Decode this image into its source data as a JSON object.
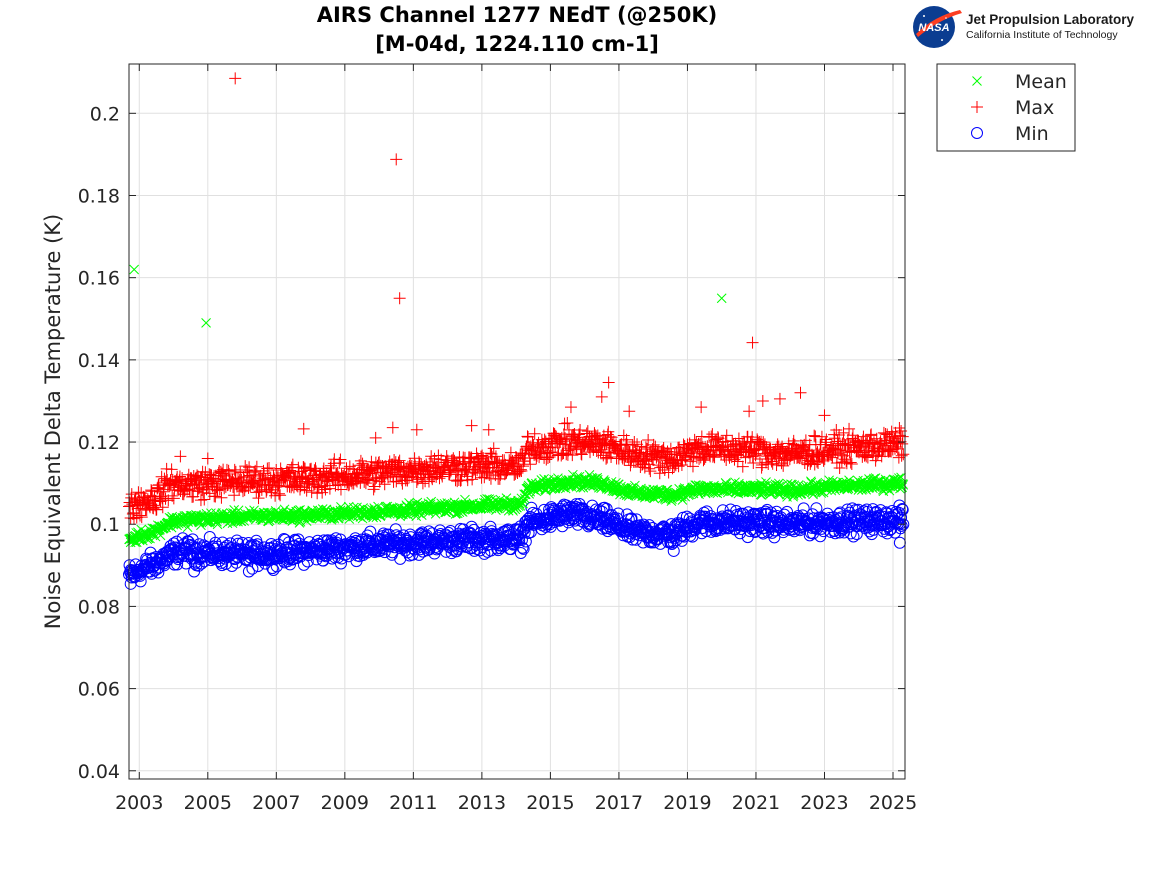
{
  "header": {
    "title_line1": "AIRS Channel 1277 NEdT (@250K)",
    "title_line2": "[M-04d, 1224.110 cm-1]"
  },
  "logo": {
    "badge_text": "NASA",
    "org_name": "Jet Propulsion Laboratory",
    "org_sub": "California Institute of Technology"
  },
  "colors": {
    "mean": "#00ff00",
    "max": "#ff0000",
    "min": "#0000ff",
    "grid": "#e0e0e0",
    "axis": "#262626"
  },
  "chart_data": {
    "type": "scatter",
    "title": "AIRS Channel 1277 NEdT (@250K) [M-04d, 1224.110 cm-1]",
    "xlabel": "",
    "ylabel": "Noise Equivalent Delta Temperature (K)",
    "xlim": [
      2002.7,
      2025.35
    ],
    "ylim": [
      0.038,
      0.212
    ],
    "xticks": [
      2003,
      2005,
      2007,
      2009,
      2011,
      2013,
      2015,
      2017,
      2019,
      2021,
      2023,
      2025
    ],
    "xtick_labels": [
      "2003",
      "2005",
      "2007",
      "2009",
      "2011",
      "2013",
      "2015",
      "2017",
      "2019",
      "2021",
      "2023",
      "2025"
    ],
    "yticks": [
      0.04,
      0.06,
      0.08,
      0.1,
      0.12,
      0.14,
      0.16,
      0.18,
      0.2
    ],
    "ytick_labels": [
      "0.04",
      "0.06",
      "0.08",
      "0.1",
      "0.12",
      "0.14",
      "0.16",
      "0.18",
      "0.2"
    ],
    "grid": true,
    "legend_position": "outside top-right",
    "series": [
      {
        "name": "Mean",
        "marker": "x",
        "color": "#00ff00",
        "trend": [
          [
            2002.7,
            0.0962
          ],
          [
            2003.5,
            0.0985
          ],
          [
            2003.9,
            0.1005
          ],
          [
            2004.2,
            0.101
          ],
          [
            2006,
            0.1018
          ],
          [
            2008,
            0.1022
          ],
          [
            2009.8,
            0.103
          ],
          [
            2011,
            0.1035
          ],
          [
            2012.5,
            0.1043
          ],
          [
            2014.2,
            0.105
          ],
          [
            2014.3,
            0.1085
          ],
          [
            2015.5,
            0.1105
          ],
          [
            2016.5,
            0.11
          ],
          [
            2017.5,
            0.1075
          ],
          [
            2018.6,
            0.1072
          ],
          [
            2019.3,
            0.1085
          ],
          [
            2021,
            0.1085
          ],
          [
            2022,
            0.1082
          ],
          [
            2023,
            0.109
          ],
          [
            2025.3,
            0.11
          ]
        ],
        "outliers": [
          [
            2002.85,
            0.162
          ],
          [
            2004.95,
            0.149
          ],
          [
            2020.0,
            0.155
          ]
        ]
      },
      {
        "name": "Max",
        "marker": "+",
        "color": "#ff0000",
        "trend": [
          [
            2002.7,
            0.1045
          ],
          [
            2003.5,
            0.1065
          ],
          [
            2003.9,
            0.11
          ],
          [
            2004.2,
            0.1095
          ],
          [
            2006,
            0.1105
          ],
          [
            2008,
            0.111
          ],
          [
            2010,
            0.1125
          ],
          [
            2012,
            0.114
          ],
          [
            2014.2,
            0.114
          ],
          [
            2014.3,
            0.1185
          ],
          [
            2015.5,
            0.12
          ],
          [
            2016.5,
            0.1195
          ],
          [
            2017.5,
            0.117
          ],
          [
            2018.6,
            0.116
          ],
          [
            2019.3,
            0.1185
          ],
          [
            2021,
            0.118
          ],
          [
            2022,
            0.117
          ],
          [
            2023,
            0.118
          ],
          [
            2025.3,
            0.1195
          ]
        ],
        "outliers": [
          [
            2005.8,
            0.2085
          ],
          [
            2010.5,
            0.1888
          ],
          [
            2010.6,
            0.155
          ],
          [
            2020.9,
            0.1442
          ],
          [
            2016.7,
            0.1345
          ],
          [
            2022.3,
            0.132
          ],
          [
            2016.5,
            0.131
          ],
          [
            2021.2,
            0.13
          ],
          [
            2021.7,
            0.1305
          ],
          [
            2019.4,
            0.1285
          ],
          [
            2015.6,
            0.1285
          ],
          [
            2007.8,
            0.1232
          ],
          [
            2010.4,
            0.1235
          ],
          [
            2011.1,
            0.123
          ],
          [
            2012.7,
            0.124
          ],
          [
            2013.2,
            0.123
          ],
          [
            2017.3,
            0.1275
          ],
          [
            2020.8,
            0.1275
          ],
          [
            2023.0,
            0.1265
          ],
          [
            2009.9,
            0.121
          ],
          [
            2004.2,
            0.1165
          ],
          [
            2005.0,
            0.116
          ]
        ]
      },
      {
        "name": "Min",
        "marker": "o",
        "color": "#0000ff",
        "trend": [
          [
            2002.7,
            0.0875
          ],
          [
            2003.5,
            0.0905
          ],
          [
            2003.9,
            0.0925
          ],
          [
            2004.2,
            0.0935
          ],
          [
            2006,
            0.0925
          ],
          [
            2008,
            0.0935
          ],
          [
            2010,
            0.095
          ],
          [
            2012,
            0.096
          ],
          [
            2014.2,
            0.0965
          ],
          [
            2014.3,
            0.1
          ],
          [
            2015.5,
            0.1025
          ],
          [
            2016.5,
            0.101
          ],
          [
            2017.5,
            0.098
          ],
          [
            2018.6,
            0.0975
          ],
          [
            2019.3,
            0.1005
          ],
          [
            2021,
            0.1005
          ],
          [
            2022,
            0.1
          ],
          [
            2023,
            0.1005
          ],
          [
            2025.3,
            0.101
          ]
        ],
        "outliers": [
          [
            2002.75,
            0.0855
          ],
          [
            2006.2,
            0.0885
          ],
          [
            2004.6,
            0.0885
          ],
          [
            2018.6,
            0.0935
          ],
          [
            2025.2,
            0.0955
          ]
        ]
      }
    ]
  }
}
